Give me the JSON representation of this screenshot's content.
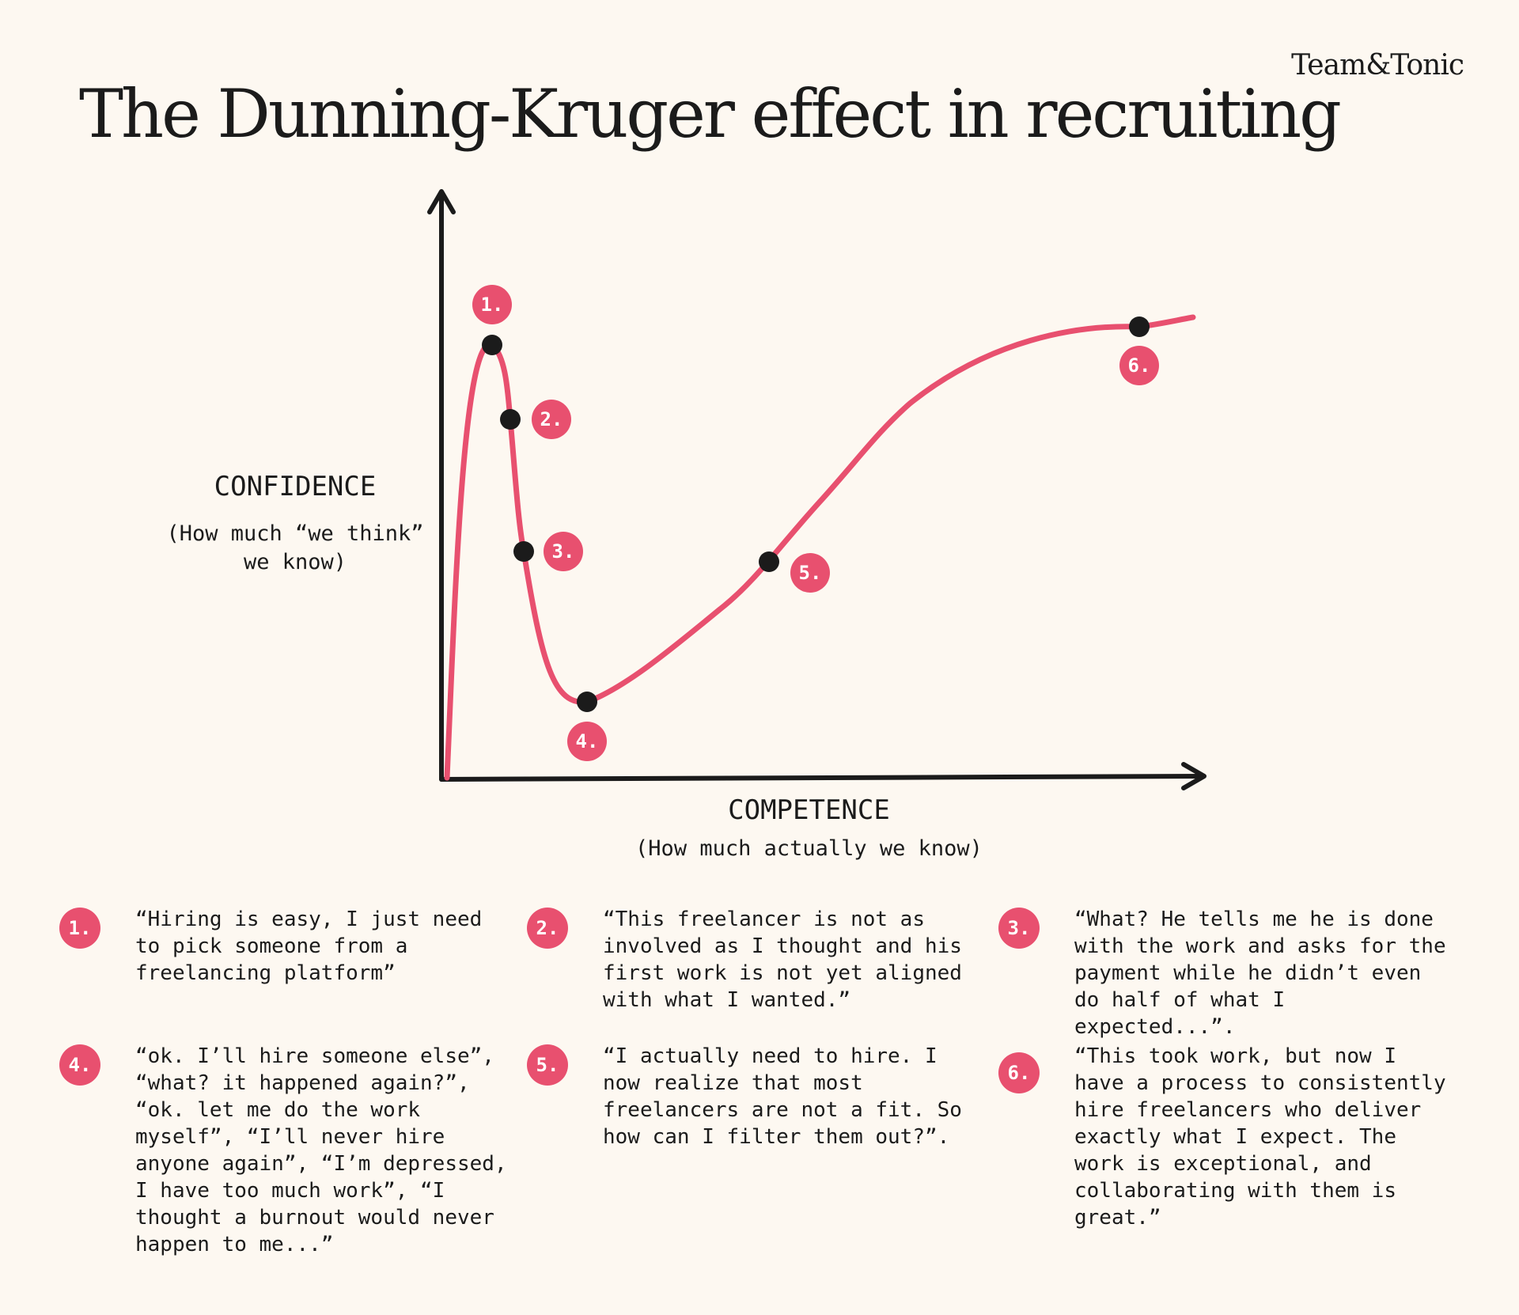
{
  "brand": "Team&Tonic",
  "title": "The Dunning-Kruger effect in recruiting",
  "y_axis": {
    "label": "CONFIDENCE",
    "sublabel": "(How much “we think” we know)"
  },
  "x_axis": {
    "label": "COMPETENCE",
    "sublabel": "(How much actually we know)"
  },
  "colors": {
    "accent": "#e8506f",
    "ink": "#1b1b1b",
    "background": "#fdf8f1"
  },
  "points": [
    {
      "label": "1."
    },
    {
      "label": "2."
    },
    {
      "label": "3."
    },
    {
      "label": "4."
    },
    {
      "label": "5."
    },
    {
      "label": "6."
    }
  ],
  "notes": [
    {
      "label": "1.",
      "text": "“Hiring is easy, I just need to pick someone from a freelancing platform”"
    },
    {
      "label": "2.",
      "text": "“This freelancer is not as involved as I thought and his first work is not yet aligned with what I wanted.”"
    },
    {
      "label": "3.",
      "text": "“What? He tells me he is done with the work and asks for the payment while he didn’t even do half of what I expected...”."
    },
    {
      "label": "4.",
      "text": "“ok. I’ll hire someone else”, “what? it happened again?”, “ok. let me do the work myself”, “I’ll never hire anyone again”, “I’m depressed, I have too much work”, “I thought a burnout would never happen to me...”"
    },
    {
      "label": "5.",
      "text": "“I actually need to hire. I now realize that most freelancers are not a fit. So how can I filter them out?”."
    },
    {
      "label": "6.",
      "text": "“This took work, but now I have a process to consistently hire freelancers who deliver exactly what I expect. The work is exceptional, and collaborating with them is great.”"
    }
  ]
}
